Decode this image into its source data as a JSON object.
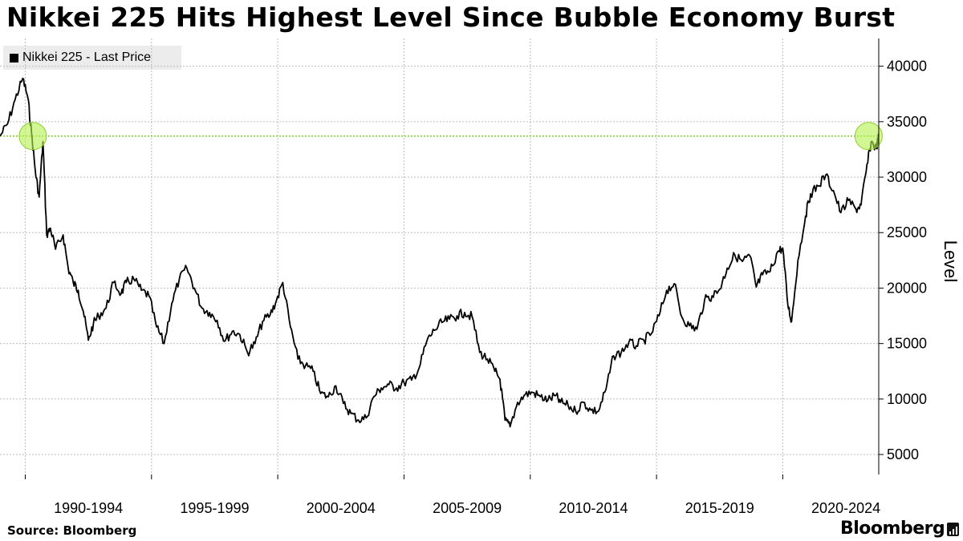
{
  "title": "Nikkei 225 Hits Highest Level Since Bubble Economy Burst",
  "source": "Source:  Bloomberg",
  "brand": "Bloomberg",
  "chart_data": {
    "type": "line",
    "legend": {
      "label": "Nikkei 225 - Last Price",
      "placement": "top-left"
    },
    "ylabel": "Level",
    "ylim": [
      3200,
      42500
    ],
    "y_ticks": [
      5000,
      10000,
      15000,
      20000,
      25000,
      30000,
      35000,
      40000
    ],
    "y_tick_labels": [
      "5000",
      "10000",
      "15000",
      "20000",
      "25000",
      "30000",
      "35000",
      "40000"
    ],
    "xlim": [
      1989.0,
      2023.8
    ],
    "x_gridlines": [
      1990,
      1995,
      2000,
      2005,
      2010,
      2015,
      2020
    ],
    "x_tick_labels": [
      {
        "label": "1990-1994",
        "center": 1992.5
      },
      {
        "label": "1995-1999",
        "center": 1997.5
      },
      {
        "label": "2000-2004",
        "center": 2002.5
      },
      {
        "label": "2005-2009",
        "center": 2007.5
      },
      {
        "label": "2010-2014",
        "center": 2012.5
      },
      {
        "label": "2015-2019",
        "center": 2017.5
      },
      {
        "label": "2020-2024",
        "center": 2022.5
      }
    ],
    "grid": true,
    "reference_line": {
      "value": 33700,
      "color": "#7ed321"
    },
    "highlights": [
      {
        "x": 1990.3,
        "y": 33700,
        "color": "#b6f04f"
      },
      {
        "x": 2023.4,
        "y": 33700,
        "color": "#b6f04f"
      }
    ],
    "series": [
      {
        "color": "#000000",
        "x": [
          1989.0,
          1989.3,
          1989.6,
          1989.9,
          1990.1,
          1990.25,
          1990.4,
          1990.55,
          1990.7,
          1990.85,
          1991.0,
          1991.2,
          1991.5,
          1991.7,
          1991.9,
          1992.1,
          1992.3,
          1992.5,
          1992.7,
          1992.9,
          1993.2,
          1993.5,
          1993.8,
          1994.0,
          1994.3,
          1994.6,
          1994.9,
          1995.2,
          1995.5,
          1995.8,
          1996.1,
          1996.4,
          1996.7,
          1997.0,
          1997.3,
          1997.6,
          1997.9,
          1998.2,
          1998.5,
          1998.8,
          1999.1,
          1999.4,
          1999.7,
          1999.95,
          2000.2,
          2000.5,
          2000.8,
          2001.1,
          2001.4,
          2001.7,
          2002.0,
          2002.3,
          2002.6,
          2002.9,
          2003.2,
          2003.5,
          2003.8,
          2004.1,
          2004.4,
          2004.7,
          2005.0,
          2005.3,
          2005.6,
          2005.9,
          2006.2,
          2006.5,
          2006.8,
          2007.1,
          2007.4,
          2007.7,
          2008.0,
          2008.3,
          2008.6,
          2008.8,
          2009.0,
          2009.2,
          2009.5,
          2009.8,
          2010.1,
          2010.4,
          2010.7,
          2011.0,
          2011.2,
          2011.5,
          2011.8,
          2012.1,
          2012.4,
          2012.7,
          2013.0,
          2013.3,
          2013.6,
          2013.9,
          2014.2,
          2014.5,
          2014.8,
          2015.1,
          2015.4,
          2015.7,
          2016.0,
          2016.3,
          2016.6,
          2016.9,
          2017.2,
          2017.5,
          2017.8,
          2018.1,
          2018.4,
          2018.7,
          2018.95,
          2019.2,
          2019.5,
          2019.8,
          2020.0,
          2020.2,
          2020.35,
          2020.6,
          2020.9,
          2021.1,
          2021.4,
          2021.7,
          2022.0,
          2022.3,
          2022.6,
          2022.9,
          2023.1,
          2023.3,
          2023.5,
          2023.7,
          2023.8
        ],
        "values": [
          33700,
          34800,
          37000,
          38900,
          37200,
          34000,
          30500,
          28200,
          33200,
          24800,
          25400,
          23500,
          24800,
          21800,
          20500,
          19800,
          17900,
          15300,
          16800,
          17500,
          18200,
          20500,
          19500,
          20500,
          20800,
          19800,
          19300,
          16500,
          15000,
          18600,
          20800,
          21800,
          20000,
          18200,
          17800,
          17100,
          15200,
          16100,
          15800,
          14200,
          15000,
          17000,
          17600,
          18900,
          20500,
          16500,
          13600,
          13000,
          12500,
          10500,
          10200,
          11200,
          9600,
          8700,
          8100,
          8300,
          10200,
          11000,
          11300,
          11000,
          11500,
          11700,
          12800,
          15200,
          16200,
          16900,
          17200,
          17500,
          17800,
          17400,
          14200,
          13600,
          12500,
          11800,
          8100,
          7500,
          9700,
          10400,
          10600,
          10200,
          9900,
          10300,
          9700,
          9400,
          8900,
          9700,
          9000,
          8900,
          10900,
          13900,
          14200,
          15100,
          14800,
          15300,
          15900,
          17500,
          19800,
          20400,
          17400,
          16600,
          16300,
          18900,
          19300,
          19900,
          21800,
          23000,
          22400,
          22900,
          20100,
          21200,
          21500,
          23300,
          23600,
          18500,
          17000,
          22500,
          26500,
          28500,
          29200,
          30200,
          28800,
          26800,
          27900,
          27100,
          27500,
          30500,
          33200,
          32600,
          33700
        ]
      }
    ]
  }
}
